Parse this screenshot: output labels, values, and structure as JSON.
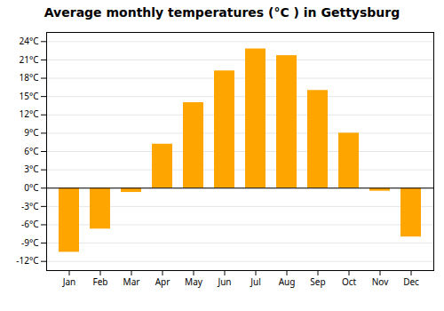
{
  "chart_data": {
    "type": "bar",
    "title": "Average monthly temperatures (°C ) in Gettysburg",
    "categories": [
      "Jan",
      "Feb",
      "Mar",
      "Apr",
      "May",
      "Jun",
      "Jul",
      "Aug",
      "Sep",
      "Oct",
      "Nov",
      "Dec"
    ],
    "values": [
      -10.5,
      -6.7,
      -0.7,
      7.2,
      14.0,
      19.2,
      22.8,
      21.7,
      16.0,
      9.0,
      -0.5,
      -8.0
    ],
    "color": "#FFA500",
    "ylim": [
      -13.5,
      25.5
    ],
    "yticks": [
      {
        "value": -12,
        "label": "-12°C"
      },
      {
        "value": -9,
        "label": "-9°C"
      },
      {
        "value": -6,
        "label": "-6°C"
      },
      {
        "value": -3,
        "label": "-3°C"
      },
      {
        "value": 0,
        "label": "0°C"
      },
      {
        "value": 3,
        "label": "3°C"
      },
      {
        "value": 6,
        "label": "6°C"
      },
      {
        "value": 9,
        "label": "9°C"
      },
      {
        "value": 12,
        "label": "12°C"
      },
      {
        "value": 15,
        "label": "15°C"
      },
      {
        "value": 18,
        "label": "18°C"
      },
      {
        "value": 21,
        "label": "21°C"
      },
      {
        "value": 24,
        "label": "24°C"
      }
    ],
    "grid": true
  }
}
